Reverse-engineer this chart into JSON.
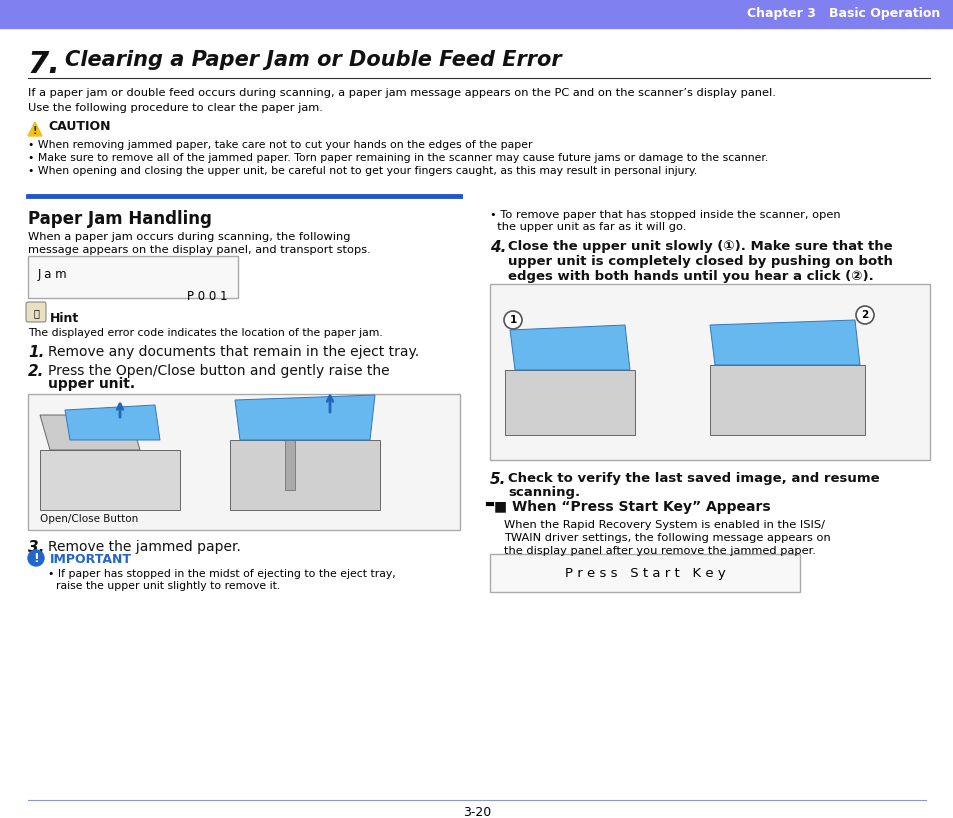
{
  "header_color": "#8080f0",
  "header_text": "Chapter 3   Basic Operation",
  "header_text_color": "#ffffff",
  "page_bg": "#ffffff",
  "title_number": "7.",
  "title_text": "Clearing a Paper Jam or Double Feed Error",
  "section_bar_color": "#2255cc",
  "section_title": "Paper Jam Handling",
  "body_text_color": "#000000",
  "caution_color": "#f0c020",
  "important_color": "#2255cc",
  "page_number": "3-20",
  "footer_line_color": "#8899cc",
  "intro_line1": "If a paper jam or double feed occurs during scanning, a paper jam message appears on the PC and on the scanner’s display panel.",
  "intro_line2": "Use the following procedure to clear the paper jam.",
  "caution_title": "CAUTION",
  "caution_bullets": [
    "When removing jammed paper, take care not to cut your hands on the edges of the paper",
    "Make sure to remove all of the jammed paper. Torn paper remaining in the scanner may cause future jams or damage to the scanner.",
    "When opening and closing the upper unit, be careful not to get your fingers caught, as this may result in personal injury."
  ],
  "left_desc1": "When a paper jam occurs during scanning, the following",
  "left_desc2": "message appears on the display panel, and transport stops.",
  "display_box_line1": "J a m",
  "display_box_line2": "P 0 0 1",
  "hint_title": "Hint",
  "hint_body": "The displayed error code indicates the location of the paper jam.",
  "step1": "Remove any documents that remain in the eject tray.",
  "step2_line1": "Press the Open/Close button and gently raise the",
  "step2_line2": "upper unit.",
  "open_close_label": "Open/Close Button",
  "step3": "Remove the jammed paper.",
  "important_title": "IMPORTANT",
  "imp_bullet1": "If paper has stopped in the midst of ejecting to the eject tray,",
  "imp_bullet2": "raise the upper unit slightly to remove it.",
  "right_bullet1": "• To remove paper that has stopped inside the scanner, open",
  "right_bullet2": "  the upper unit as far as it will go.",
  "step4_text1": "Close the upper unit slowly (①). Make sure that the",
  "step4_text2": "upper unit is completely closed by pushing on both",
  "step4_text3": "edges with both hands until you hear a click (②).",
  "step5_line1": "Check to verify the last saved image, and resume",
  "step5_line2": "scanning.",
  "press_start_title": "When “Press Start Key” Appears",
  "press_start_body1": "When the Rapid Recovery System is enabled in the ISIS/",
  "press_start_body2": "TWAIN driver settings, the following message appears on",
  "press_start_body3": "the display panel after you remove the jammed paper.",
  "press_start_box": "P r e s s   S t a r t   K e y",
  "col_split": 0.495
}
